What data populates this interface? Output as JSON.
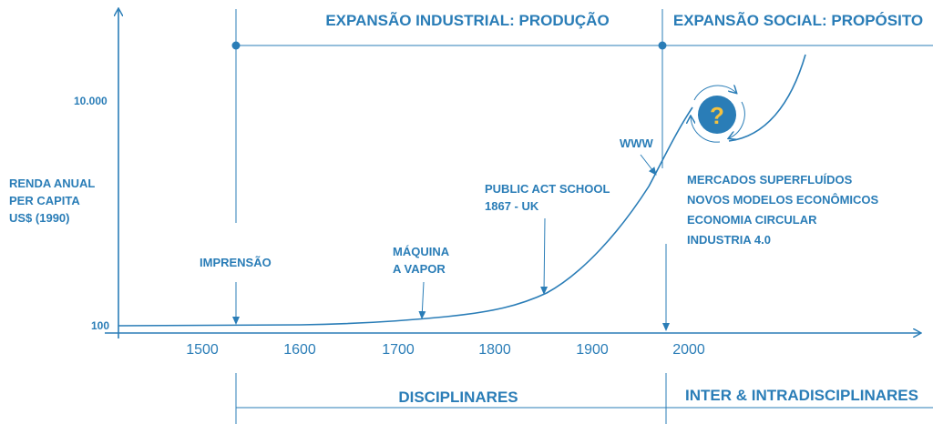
{
  "header": {
    "left": "EXPANSÃO INDUSTRIAL: PRODUÇÃO",
    "right": "EXPANSÃO SOCIAL: PROPÓSITO"
  },
  "footer": {
    "left": "DISCIPLINARES",
    "right": "INTER & INTRADISCIPLINARES"
  },
  "y_axis": {
    "label_lines": [
      "RENDA ANUAL",
      "PER CAPITA",
      "US$ (1990)"
    ],
    "ticks": [
      "10.000",
      "100"
    ]
  },
  "x_axis": {
    "ticks": [
      "1500",
      "1600",
      "1700",
      "1800",
      "1900",
      "2000"
    ]
  },
  "annotations": {
    "impressao": "IMPRENSÃO",
    "maquina": [
      "MÁQUINA",
      "A VAPOR"
    ],
    "public_act": [
      "PUBLIC ACT SCHOOL",
      "1867 - UK"
    ],
    "www": "WWW",
    "future_list": [
      "MERCADOS SUPERFLUÍDOS",
      "NOVOS MODELOS ECONÔMICOS",
      "ECONOMIA CIRCULAR",
      "INDUSTRIA 4.0"
    ]
  },
  "badge": {
    "symbol": "?"
  },
  "colors": {
    "primary": "#2a7db7",
    "badge_fill": "#2a7db7",
    "badge_text": "#f6c23e"
  }
}
